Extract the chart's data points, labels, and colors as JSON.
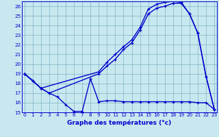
{
  "xlabel": "Graphe des températures (°c)",
  "bg_color": "#c8e8f0",
  "grid_color": "#88bbcc",
  "line_color": "#0000cc",
  "ylim": [
    15,
    26.5
  ],
  "xlim": [
    -0.3,
    23.3
  ],
  "yticks": [
    15,
    16,
    17,
    18,
    19,
    20,
    21,
    22,
    23,
    24,
    25,
    26
  ],
  "xticks": [
    0,
    1,
    2,
    3,
    4,
    5,
    6,
    7,
    8,
    9,
    10,
    11,
    12,
    13,
    14,
    15,
    16,
    17,
    18,
    19,
    20,
    21,
    22,
    23
  ],
  "series1_x": [
    0,
    1,
    2,
    3,
    4,
    5,
    6,
    7,
    8,
    9,
    10,
    11,
    12,
    13,
    14,
    15,
    16,
    17,
    18,
    19,
    20,
    21,
    22,
    23
  ],
  "series1_y": [
    19.0,
    18.3,
    17.5,
    17.0,
    16.6,
    15.8,
    15.1,
    15.1,
    18.5,
    16.1,
    16.2,
    16.2,
    16.1,
    16.1,
    16.1,
    16.1,
    16.1,
    16.1,
    16.1,
    16.1,
    16.1,
    16.0,
    16.0,
    15.3
  ],
  "series2_x": [
    0,
    1,
    2,
    3,
    9,
    10,
    11,
    12,
    13,
    14,
    15,
    16,
    17,
    18,
    19,
    20,
    21,
    22,
    23
  ],
  "series2_y": [
    19.0,
    18.3,
    17.5,
    17.0,
    19.0,
    19.8,
    20.5,
    21.5,
    22.2,
    23.5,
    25.2,
    25.8,
    26.0,
    26.3,
    26.3,
    25.2,
    23.2,
    18.7,
    15.3
  ],
  "series3_x": [
    0,
    2,
    9,
    10,
    11,
    12,
    13,
    14,
    15,
    16,
    17,
    18,
    19,
    20,
    21,
    22,
    23
  ],
  "series3_y": [
    19.0,
    17.5,
    19.2,
    20.2,
    21.0,
    21.8,
    22.5,
    23.8,
    25.7,
    26.2,
    26.4,
    26.5,
    26.4,
    25.2,
    23.2,
    18.7,
    15.3
  ]
}
